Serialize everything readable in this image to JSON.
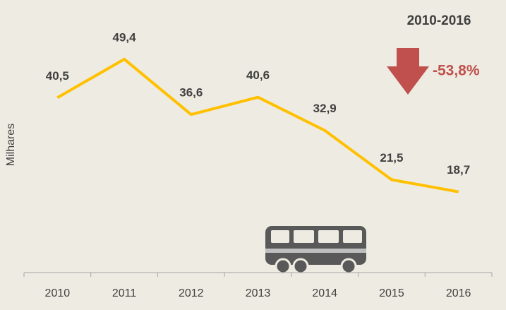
{
  "chart_data": {
    "type": "line",
    "title": "2010-2016",
    "annotation": "-53,8%",
    "ylabel": "Milhares",
    "categories": [
      "2010",
      "2011",
      "2012",
      "2013",
      "2014",
      "2015",
      "2016"
    ],
    "values": [
      40.5,
      49.4,
      36.6,
      40.6,
      32.9,
      21.5,
      18.7
    ],
    "value_labels": [
      "40,5",
      "49,4",
      "36,6",
      "40,6",
      "32,9",
      "21,5",
      "18,7"
    ],
    "color": "#ffc000",
    "ylim": [
      0,
      60
    ]
  }
}
